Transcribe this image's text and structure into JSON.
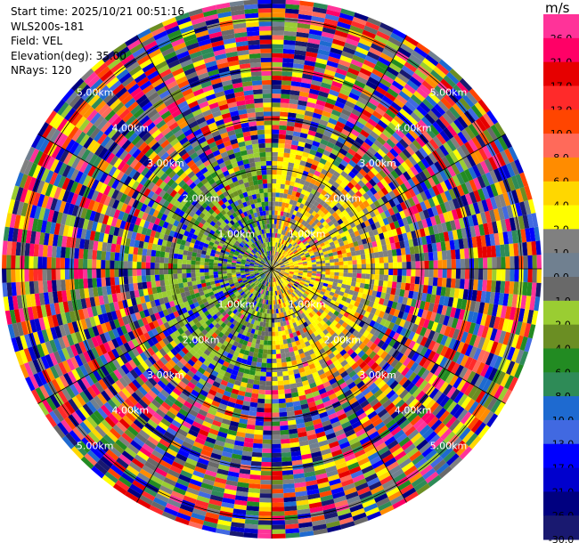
{
  "header": {
    "start_time": "Start time: 2025/10/21 00:51:16",
    "instrument": "WLS200s-181",
    "field": "Field: VEL",
    "elevation": "Elevation(deg): 35.00",
    "nrays": "NRays: 120"
  },
  "colorbar": {
    "unit": "m/s",
    "bins": [
      {
        "label": "26.0",
        "color": "#ff3399"
      },
      {
        "label": "21.0",
        "color": "#ff0066"
      },
      {
        "label": "17.0",
        "color": "#e60000"
      },
      {
        "label": "13.0",
        "color": "#ff2a2a"
      },
      {
        "label": "10.0",
        "color": "#ff4500"
      },
      {
        "label": "8.0",
        "color": "#ff6a5a"
      },
      {
        "label": "6.0",
        "color": "#ff8c00"
      },
      {
        "label": "4.0",
        "color": "#ffd700"
      },
      {
        "label": "2.0",
        "color": "#ffff00"
      },
      {
        "label": "1.0",
        "color": "#808080"
      },
      {
        "label": "0.0",
        "color": "#708090"
      },
      {
        "label": "-1.0",
        "color": "#696969"
      },
      {
        "label": "-2.0",
        "color": "#9acd32"
      },
      {
        "label": "-4.0",
        "color": "#6b8e23"
      },
      {
        "label": "-6.0",
        "color": "#228b22"
      },
      {
        "label": "-8.0",
        "color": "#2e8b57"
      },
      {
        "label": "-10.0",
        "color": "#1e6ad0"
      },
      {
        "label": "-13.0",
        "color": "#4169e1"
      },
      {
        "label": "-17.0",
        "color": "#0000ff"
      },
      {
        "label": "-21.0",
        "color": "#0000cd"
      },
      {
        "label": "-26.0",
        "color": "#000080"
      },
      {
        "label": "-30.0",
        "color": "#191970"
      }
    ]
  },
  "chart_data": {
    "type": "heatmap",
    "projection": "polar PPI",
    "field": "VEL",
    "rays": 120,
    "range_rings_km": [
      1,
      2,
      3,
      4,
      5
    ],
    "ring_labels": [
      "1.00km",
      "2.00km",
      "3.00km",
      "4.00km",
      "5.00km"
    ],
    "max_range_km": 5.4,
    "spokes_deg": [
      0,
      30,
      60,
      90,
      120,
      150
    ],
    "pattern": "near-range: negative velocities (greens) on left half, positive (yellow) on right half; far-range: noisy mixed colors across full scale"
  }
}
